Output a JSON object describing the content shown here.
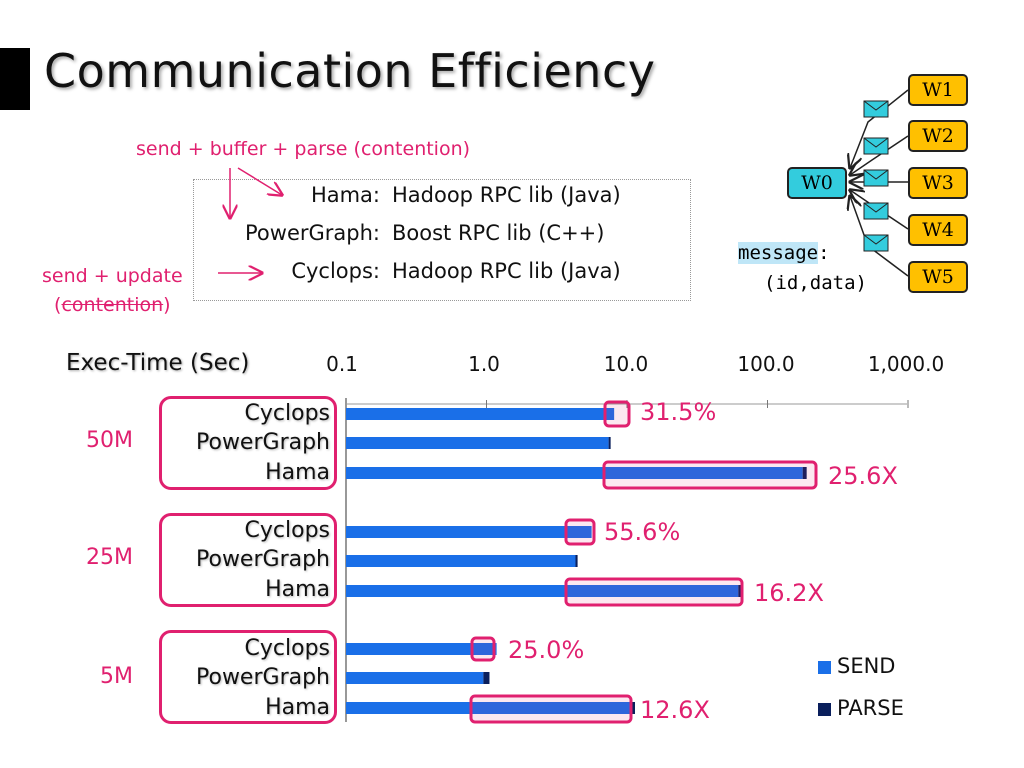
{
  "slide": {
    "title": "Communication Efficiency",
    "note_top": "send + buffer + parse (contention)",
    "note_left_line1": "send + update",
    "note_left_line2_open": "(",
    "note_left_line2_struck": "contention",
    "note_left_line2_close": ")",
    "libraries": [
      {
        "name": "Hama:",
        "desc": "Hadoop RPC lib (Java)"
      },
      {
        "name": "PowerGraph:",
        "desc": "Boost RPC lib (C++)"
      },
      {
        "name": "Cyclops:",
        "desc": "Hadoop RPC lib (Java)"
      }
    ],
    "diagram": {
      "master": "W0",
      "workers": [
        "W1",
        "W2",
        "W3",
        "W4",
        "W5"
      ],
      "message_label": "message",
      "message_colon": ":",
      "message_tuple": "(id,data)",
      "colors": {
        "worker": "#ffc000",
        "master": "#33ccdd",
        "envelope": "#33ccdd"
      }
    }
  },
  "chart_data": {
    "type": "bar",
    "orientation": "horizontal",
    "stacked": true,
    "log_scale": true,
    "ylabel": "Exec-Time (Sec)",
    "xlim": [
      0.1,
      1000
    ],
    "xticks": [
      "0.1",
      "1.0",
      "10.0",
      "100.0",
      "1,000.0"
    ],
    "groups": [
      "50M",
      "25M",
      "5M"
    ],
    "categories": [
      "Cyclops",
      "PowerGraph",
      "Hama"
    ],
    "series": [
      {
        "name": "SEND",
        "color": "#1a6fe8",
        "values": [
          [
            8.1,
            7.4,
            178
          ],
          [
            5.6,
            4.3,
            62
          ],
          [
            1.18,
            0.95,
            10.8
          ]
        ]
      },
      {
        "name": "PARSE",
        "color": "#0a1f5c",
        "values": [
          [
            0.0,
            0.2,
            12
          ],
          [
            0.0,
            0.15,
            3
          ],
          [
            0.0,
            0.1,
            0.6
          ]
        ]
      }
    ],
    "annotations": [
      {
        "group": "50M",
        "text": "31.5%"
      },
      {
        "group": "50M",
        "text": "25.6X"
      },
      {
        "group": "25M",
        "text": "55.6%"
      },
      {
        "group": "25M",
        "text": "16.2X"
      },
      {
        "group": "5M",
        "text": "25.0%"
      },
      {
        "group": "5M",
        "text": "12.6X"
      }
    ],
    "legend_position": "bottom-right",
    "highlight_color": "#e0206f"
  }
}
